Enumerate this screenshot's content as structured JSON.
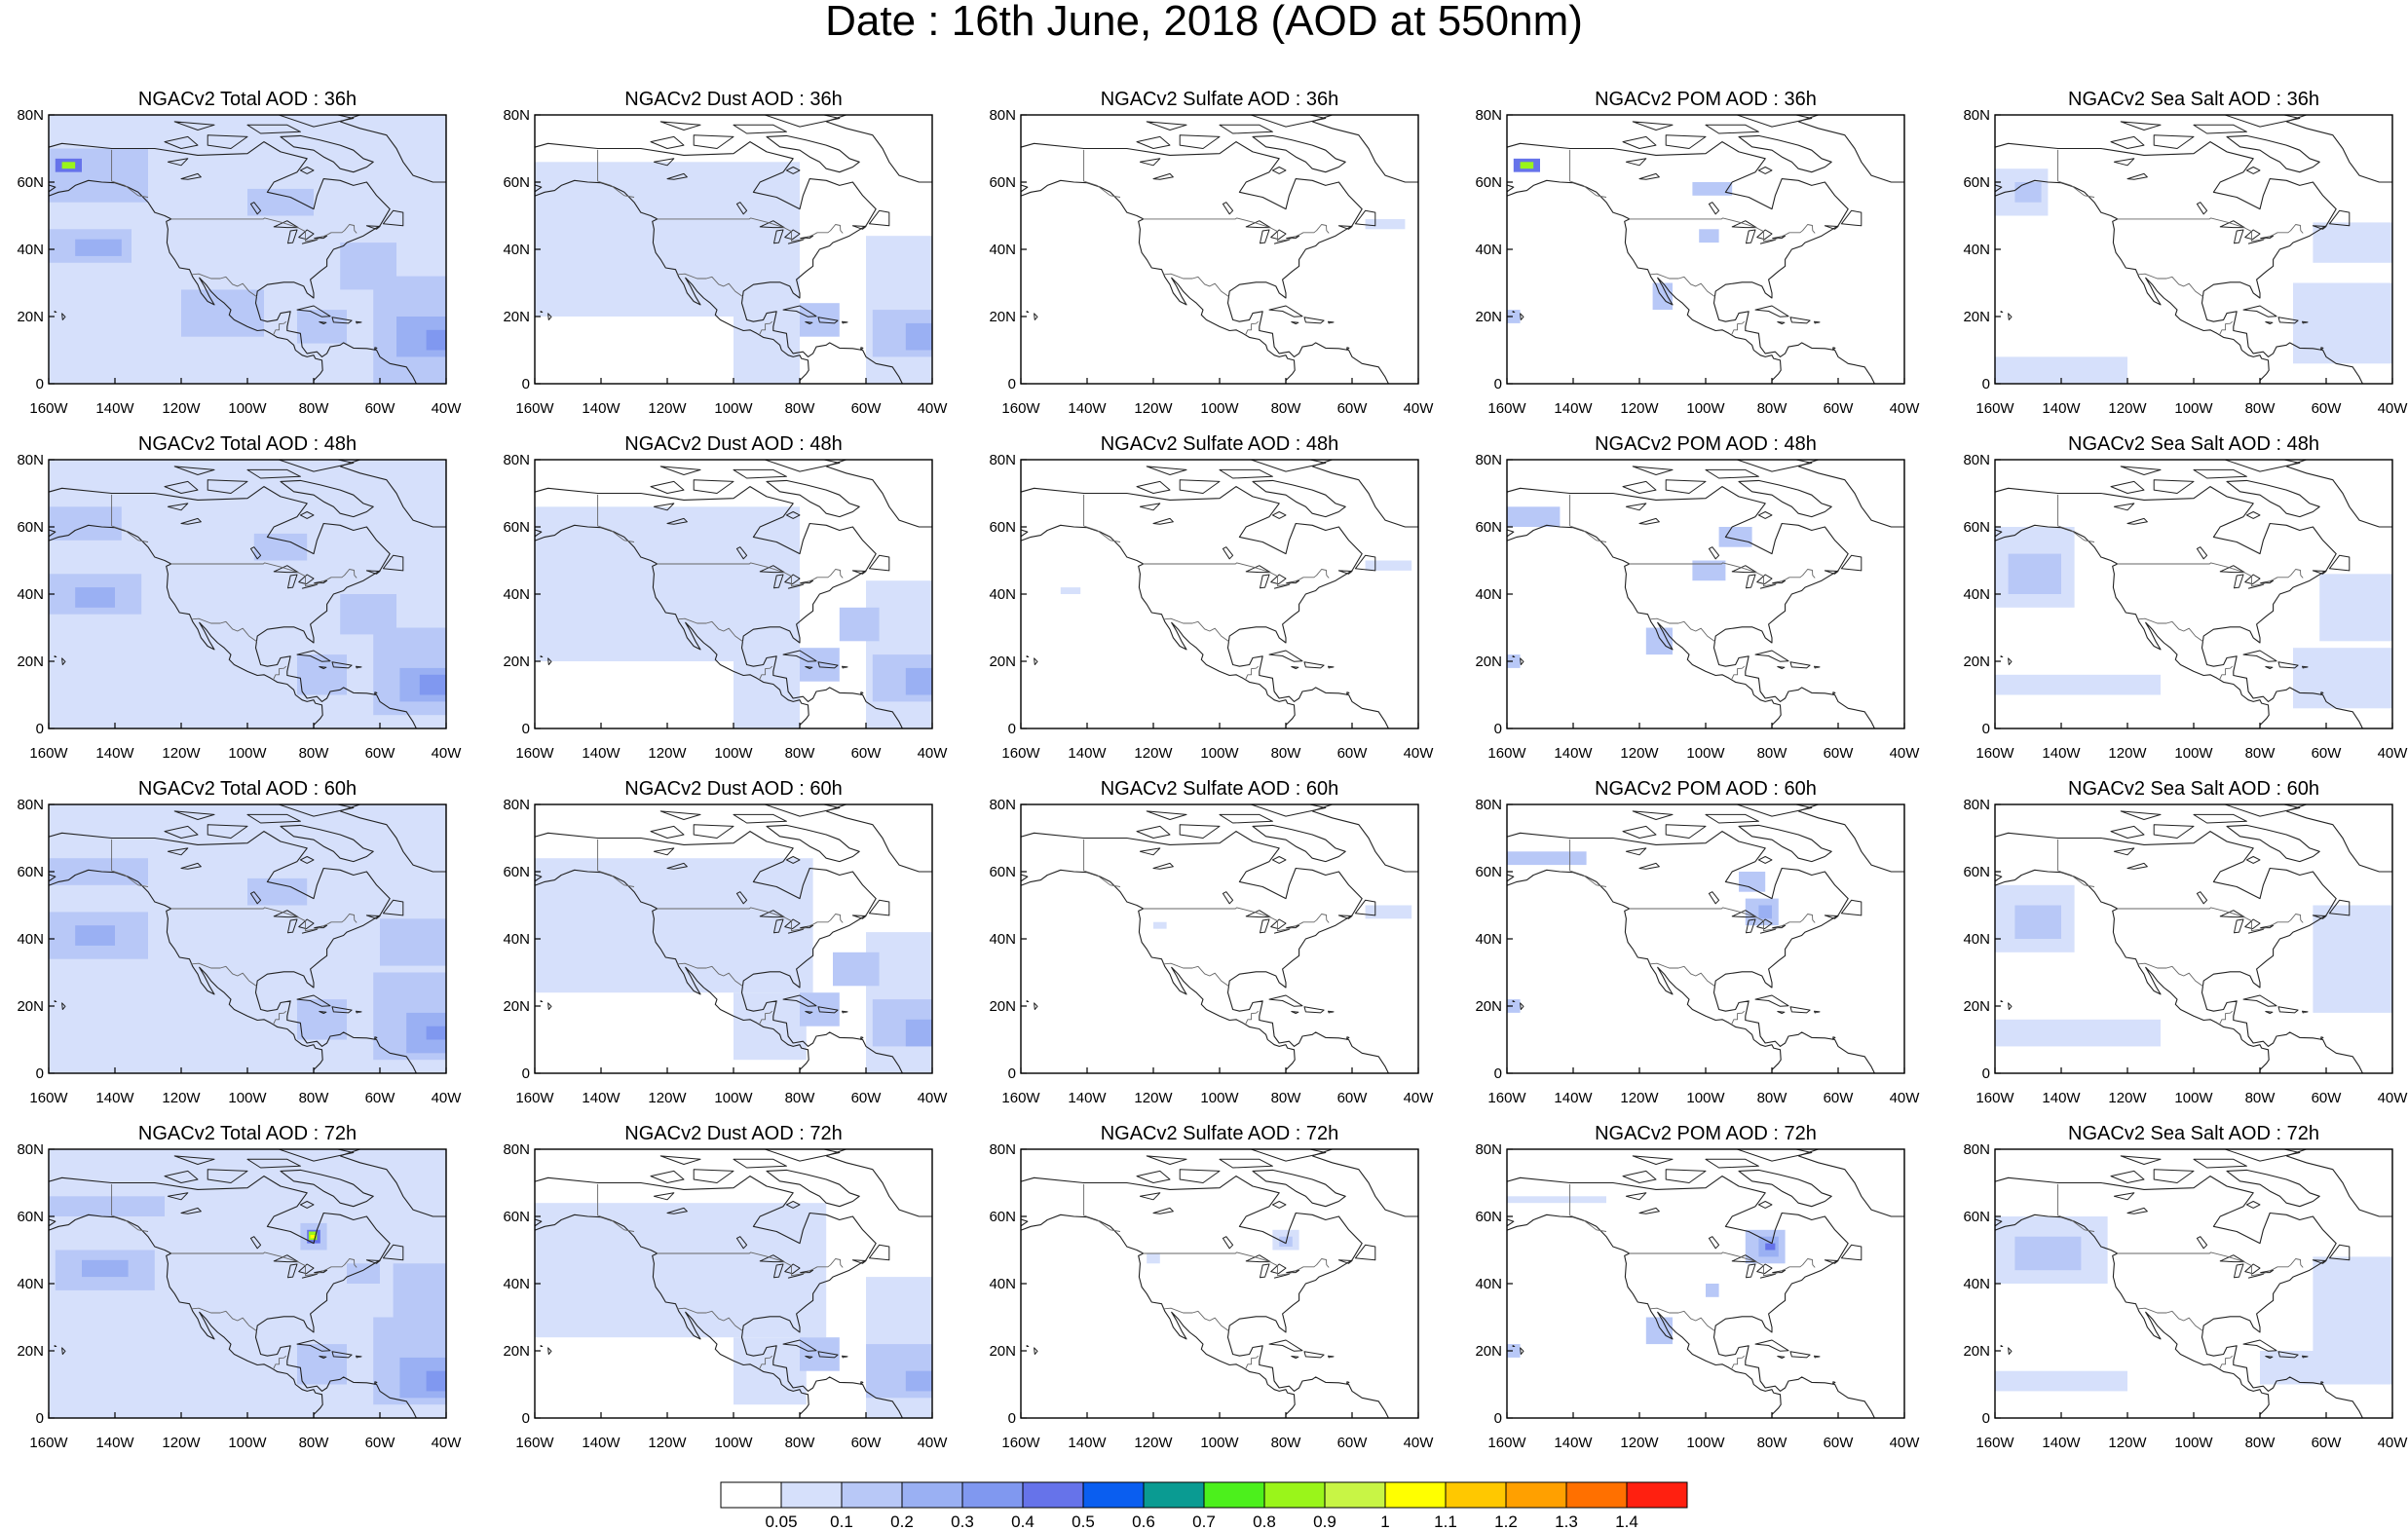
{
  "page_title": "Date : 16th June, 2018 (AOD at 550nm)",
  "lat_ticks": [
    "80N",
    "60N",
    "40N",
    "20N",
    "0"
  ],
  "lon_ticks": [
    "160W",
    "140W",
    "120W",
    "100W",
    "80W",
    "60W",
    "40W"
  ],
  "panels": [
    [
      "NGACv2 Total AOD : 36h",
      "NGACv2 Dust AOD : 36h",
      "NGACv2 Sulfate AOD : 36h",
      "NGACv2 POM AOD : 36h",
      "NGACv2 Sea Salt AOD : 36h"
    ],
    [
      "NGACv2 Total AOD : 48h",
      "NGACv2 Dust AOD : 48h",
      "NGACv2 Sulfate AOD : 48h",
      "NGACv2 POM AOD : 48h",
      "NGACv2 Sea Salt AOD : 48h"
    ],
    [
      "NGACv2 Total AOD : 60h",
      "NGACv2 Dust AOD : 60h",
      "NGACv2 Sulfate AOD : 60h",
      "NGACv2 POM AOD : 60h",
      "NGACv2 Sea Salt AOD : 60h"
    ],
    [
      "NGACv2 Total AOD : 72h",
      "NGACv2 Dust AOD : 72h",
      "NGACv2 Sulfate AOD : 72h",
      "NGACv2 POM AOD : 72h",
      "NGACv2 Sea Salt  AOD : 72h"
    ]
  ],
  "colorbar": {
    "labels": [
      "0.05",
      "0.1",
      "0.2",
      "0.3",
      "0.4",
      "0.5",
      "0.6",
      "0.7",
      "0.8",
      "0.9",
      "1",
      "1.1",
      "1.2",
      "1.3",
      "1.4"
    ],
    "colors": [
      "#ffffff",
      "#d6e0fb",
      "#b8c8f7",
      "#9ab0f3",
      "#8098f0",
      "#6673ea",
      "#0a5ef0",
      "#0a9b92",
      "#4cf01c",
      "#9af51a",
      "#c8f545",
      "#ffff00",
      "#ffc800",
      "#ffa000",
      "#ff7000",
      "#ff2010"
    ]
  },
  "colors": {
    "land_outline": "#222222",
    "border_line": "#666666"
  }
}
